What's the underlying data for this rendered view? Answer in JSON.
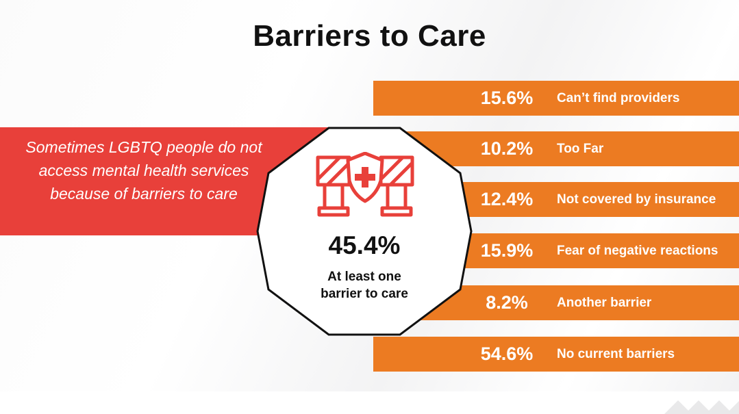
{
  "title": "Barriers to Care",
  "intro_text": "Sometimes LGBTQ people do not access mental health services because of barriers to care",
  "summary": {
    "value": "45.4%",
    "label_line1": "At least one",
    "label_line2": "barrier to care"
  },
  "barriers": [
    {
      "percent": "15.6%",
      "label": "Can’t find providers"
    },
    {
      "percent": "10.2%",
      "label": "Too Far"
    },
    {
      "percent": "12.4%",
      "label": "Not covered by insurance"
    },
    {
      "percent": "15.9%",
      "label": "Fear of negative reactions"
    },
    {
      "percent": "8.2%",
      "label": "Another barrier"
    },
    {
      "percent": "54.6%",
      "label": "No current barriers"
    }
  ],
  "icons": {
    "center": "barricade-shield-icon"
  },
  "colors": {
    "red": "#e8403a",
    "orange": "#ec7b22",
    "icon_red": "#e8403a"
  }
}
